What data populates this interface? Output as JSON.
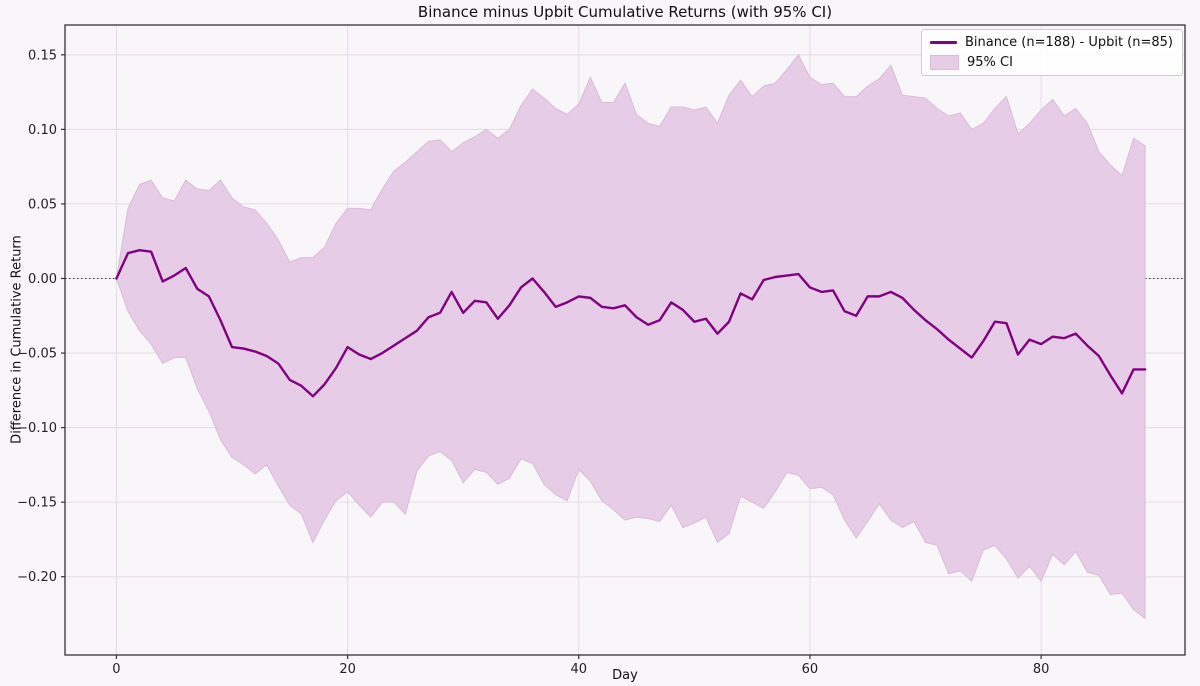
{
  "chart": {
    "title": "Binance minus Upbit Cumulative Returns (with 95% CI)",
    "xlabel": "Day",
    "ylabel": "Difference in Cumulative Return",
    "legend": [
      "Binance (n=188) - Upbit (n=85)",
      "95% CI"
    ]
  },
  "colors": {
    "line": "#800080",
    "band_fill": "#e6cce6",
    "band_edge": "#d9bcd7",
    "grid": "#e2dde2",
    "zero_line": "#3a3a3a",
    "spine": "#333333",
    "tick_text": "#222222",
    "background": "#f9f6f9"
  },
  "chart_data": {
    "type": "line",
    "title": "Binance minus Upbit Cumulative Returns (with 95% CI)",
    "xlabel": "Day",
    "ylabel": "Difference in Cumulative Return",
    "xlim": [
      -4.45,
      92.45
    ],
    "ylim": [
      -0.2525,
      0.17
    ],
    "grid": true,
    "legend_position": "upper right",
    "zero_reference_line": 0.0,
    "x_ticks": [
      0,
      20,
      40,
      60,
      80
    ],
    "x_tick_labels": [
      "0",
      "20",
      "40",
      "60",
      "80"
    ],
    "y_ticks": [
      0.15,
      0.1,
      0.05,
      0.0,
      -0.05,
      -0.1,
      -0.15,
      -0.2
    ],
    "y_tick_labels": [
      "0.15",
      "0.10",
      "0.05",
      "0.00",
      "−0.05",
      "−0.10",
      "−0.15",
      "−0.20"
    ],
    "days": [
      0,
      1,
      2,
      3,
      4,
      5,
      6,
      7,
      8,
      9,
      10,
      11,
      12,
      13,
      14,
      15,
      16,
      17,
      18,
      19,
      20,
      21,
      22,
      23,
      24,
      25,
      26,
      27,
      28,
      29,
      30,
      31,
      32,
      33,
      34,
      35,
      36,
      37,
      38,
      39,
      40,
      41,
      42,
      43,
      44,
      45,
      46,
      47,
      48,
      49,
      50,
      51,
      52,
      53,
      54,
      55,
      56,
      57,
      58,
      59,
      60,
      61,
      62,
      63,
      64,
      65,
      66,
      67,
      68,
      69,
      70,
      71,
      72,
      73,
      74,
      75,
      76,
      77,
      78,
      79,
      80,
      81,
      82,
      83,
      84,
      85,
      86,
      87,
      88,
      89
    ],
    "series": [
      {
        "name": "Binance (n=188) - Upbit (n=85)",
        "role": "mean-difference",
        "values": [
          0.0,
          0.017,
          0.019,
          0.018,
          -0.002,
          0.002,
          0.007,
          -0.007,
          -0.012,
          -0.028,
          -0.046,
          -0.047,
          -0.049,
          -0.052,
          -0.057,
          -0.068,
          -0.072,
          -0.079,
          -0.071,
          -0.06,
          -0.046,
          -0.051,
          -0.054,
          -0.05,
          -0.045,
          -0.04,
          -0.035,
          -0.026,
          -0.023,
          -0.009,
          -0.023,
          -0.015,
          -0.016,
          -0.027,
          -0.018,
          -0.006,
          0.0,
          -0.009,
          -0.019,
          -0.016,
          -0.012,
          -0.013,
          -0.019,
          -0.02,
          -0.018,
          -0.026,
          -0.031,
          -0.028,
          -0.016,
          -0.021,
          -0.029,
          -0.027,
          -0.037,
          -0.029,
          -0.01,
          -0.014,
          -0.001,
          0.001,
          0.002,
          0.003,
          -0.006,
          -0.009,
          -0.008,
          -0.022,
          -0.025,
          -0.012,
          -0.012,
          -0.009,
          -0.013,
          -0.021,
          -0.028,
          -0.034,
          -0.041,
          -0.047,
          -0.053,
          -0.042,
          -0.029,
          -0.03,
          -0.051,
          -0.041,
          -0.044,
          -0.039,
          -0.04,
          -0.037,
          -0.045,
          -0.052,
          -0.065,
          -0.077,
          -0.061,
          -0.061
        ]
      },
      {
        "name": "95% CI upper",
        "role": "ci-upper",
        "values": [
          0.0,
          0.047,
          0.063,
          0.066,
          0.054,
          0.052,
          0.066,
          0.06,
          0.059,
          0.066,
          0.054,
          0.048,
          0.046,
          0.037,
          0.026,
          0.011,
          0.014,
          0.014,
          0.021,
          0.037,
          0.047,
          0.047,
          0.046,
          0.06,
          0.072,
          0.078,
          0.085,
          0.092,
          0.093,
          0.085,
          0.091,
          0.095,
          0.1,
          0.094,
          0.1,
          0.116,
          0.127,
          0.121,
          0.114,
          0.11,
          0.117,
          0.135,
          0.118,
          0.118,
          0.131,
          0.11,
          0.104,
          0.102,
          0.115,
          0.115,
          0.113,
          0.115,
          0.104,
          0.123,
          0.133,
          0.122,
          0.129,
          0.131,
          0.14,
          0.15,
          0.135,
          0.13,
          0.131,
          0.122,
          0.122,
          0.129,
          0.134,
          0.143,
          0.123,
          0.122,
          0.121,
          0.114,
          0.109,
          0.111,
          0.1,
          0.104,
          0.114,
          0.122,
          0.097,
          0.104,
          0.113,
          0.12,
          0.109,
          0.114,
          0.104,
          0.085,
          0.076,
          0.069,
          0.094,
          0.089
        ]
      },
      {
        "name": "95% CI lower",
        "role": "ci-lower",
        "values": [
          0.0,
          -0.022,
          -0.035,
          -0.044,
          -0.057,
          -0.053,
          -0.053,
          -0.074,
          -0.089,
          -0.108,
          -0.12,
          -0.125,
          -0.131,
          -0.125,
          -0.139,
          -0.152,
          -0.158,
          -0.177,
          -0.162,
          -0.149,
          -0.143,
          -0.152,
          -0.16,
          -0.15,
          -0.15,
          -0.158,
          -0.129,
          -0.119,
          -0.116,
          -0.122,
          -0.137,
          -0.128,
          -0.13,
          -0.138,
          -0.134,
          -0.121,
          -0.124,
          -0.138,
          -0.145,
          -0.149,
          -0.128,
          -0.136,
          -0.149,
          -0.155,
          -0.162,
          -0.16,
          -0.161,
          -0.163,
          -0.152,
          -0.167,
          -0.164,
          -0.16,
          -0.177,
          -0.171,
          -0.146,
          -0.15,
          -0.154,
          -0.143,
          -0.13,
          -0.132,
          -0.141,
          -0.14,
          -0.145,
          -0.162,
          -0.174,
          -0.163,
          -0.151,
          -0.162,
          -0.167,
          -0.163,
          -0.177,
          -0.179,
          -0.198,
          -0.196,
          -0.203,
          -0.182,
          -0.179,
          -0.188,
          -0.201,
          -0.193,
          -0.203,
          -0.185,
          -0.192,
          -0.183,
          -0.197,
          -0.199,
          -0.212,
          -0.211,
          -0.222,
          -0.228
        ]
      }
    ]
  }
}
